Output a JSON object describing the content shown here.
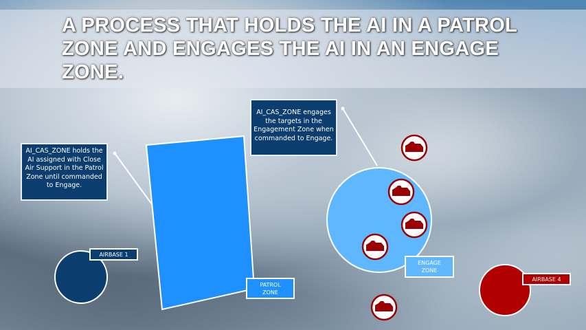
{
  "title": "A PROCESS THAT HOLDS THE AI IN A PATROL ZONE AND ENGAGES THE AI IN AN ENGAGE ZONE.",
  "notes": {
    "patrol": "AI_CAS_ZONE holds the AI assigned with Close Air Support in the Patrol Zone until commanded to Engage.",
    "engage": "AI_CAS_ZONE engages the targets in the Engagement Zone when commanded to Engage."
  },
  "labels": {
    "airbase1": "AIRBASE 1",
    "airbase4": "AIRBASE 4",
    "patrol_zone": "PATROL ZONE",
    "engage_zone": "ENGAGE ZONE"
  },
  "colors": {
    "patrol": "#1e90ff",
    "engage": "#5fb8ff",
    "airbase1": "#0b3d6e",
    "airbase4": "#b00000",
    "note_bg": "#0b3d6e",
    "tank": "#9b0000"
  },
  "targets": [
    {
      "icon": "tank-icon"
    },
    {
      "icon": "tank-icon"
    },
    {
      "icon": "tank-icon"
    },
    {
      "icon": "tank-icon"
    },
    {
      "icon": "tank-icon"
    }
  ]
}
